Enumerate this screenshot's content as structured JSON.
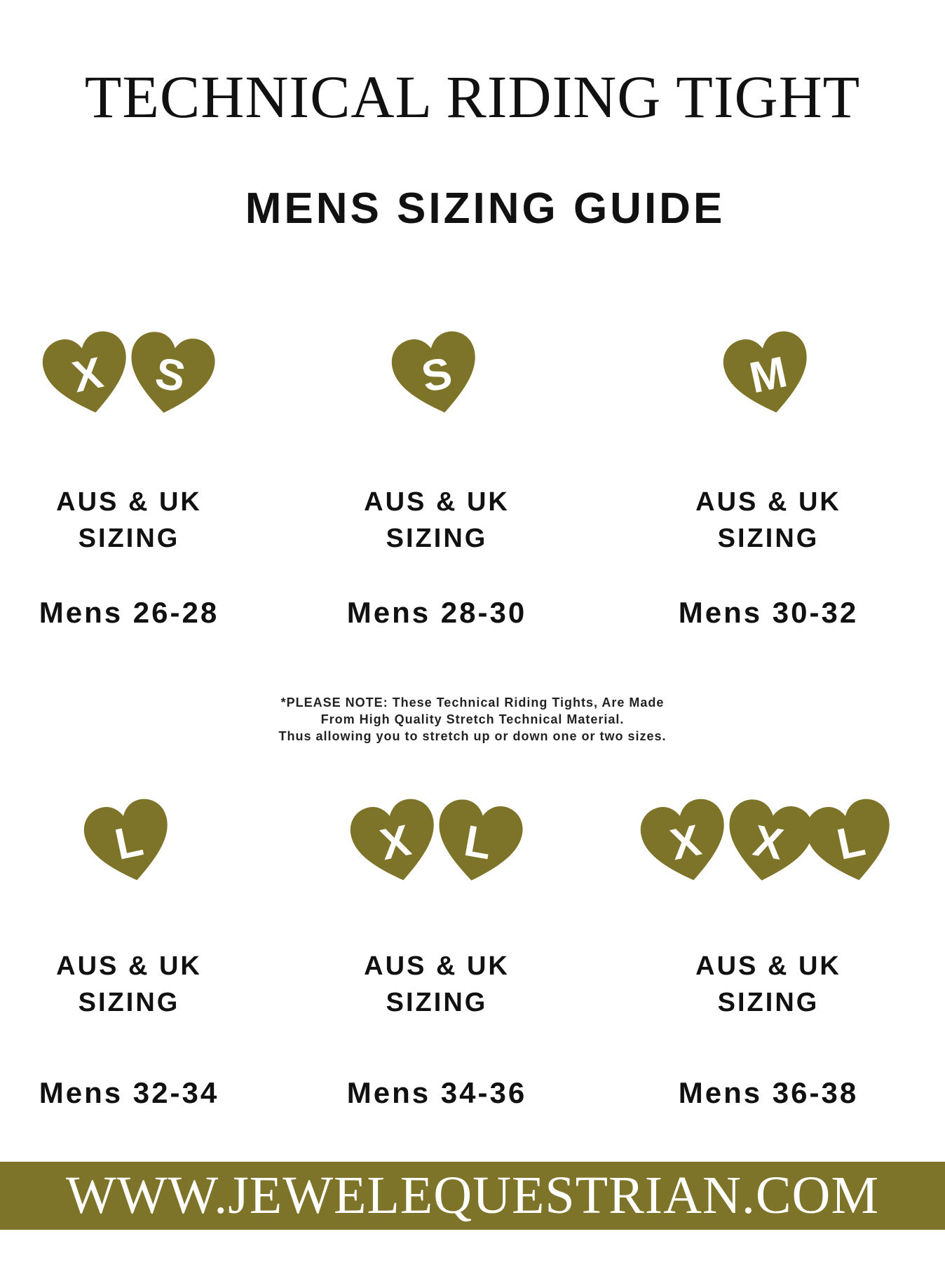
{
  "title": "TECHNICAL RIDING TIGHT",
  "subtitle": "MENS SIZING GUIDE",
  "brand_color": "#7d7429",
  "sizes": [
    {
      "letters": [
        "X",
        "S"
      ],
      "region_line1": "AUS & UK",
      "region_line2": "SIZING",
      "range": "Mens 26-28"
    },
    {
      "letters": [
        "S"
      ],
      "region_line1": "AUS & UK",
      "region_line2": "SIZING",
      "range": "Mens 28-30"
    },
    {
      "letters": [
        "M"
      ],
      "region_line1": "AUS & UK",
      "region_line2": "SIZING",
      "range": "Mens 30-32"
    },
    {
      "letters": [
        "L"
      ],
      "region_line1": "AUS & UK",
      "region_line2": "SIZING",
      "range": "Mens 32-34"
    },
    {
      "letters": [
        "X",
        "L"
      ],
      "region_line1": "AUS & UK",
      "region_line2": "SIZING",
      "range": "Mens 34-36"
    },
    {
      "letters": [
        "X",
        "X",
        "L"
      ],
      "region_line1": "AUS & UK",
      "region_line2": "SIZING",
      "range": "Mens 36-38"
    }
  ],
  "note": {
    "line1": "*PLEASE NOTE: These Technical Riding Tights, Are Made",
    "line2": "From High Quality Stretch Technical Material.",
    "line3": "Thus allowing you to stretch up or down one or two sizes."
  },
  "footer": "WWW.JEWELEQUESTRIAN.COM"
}
